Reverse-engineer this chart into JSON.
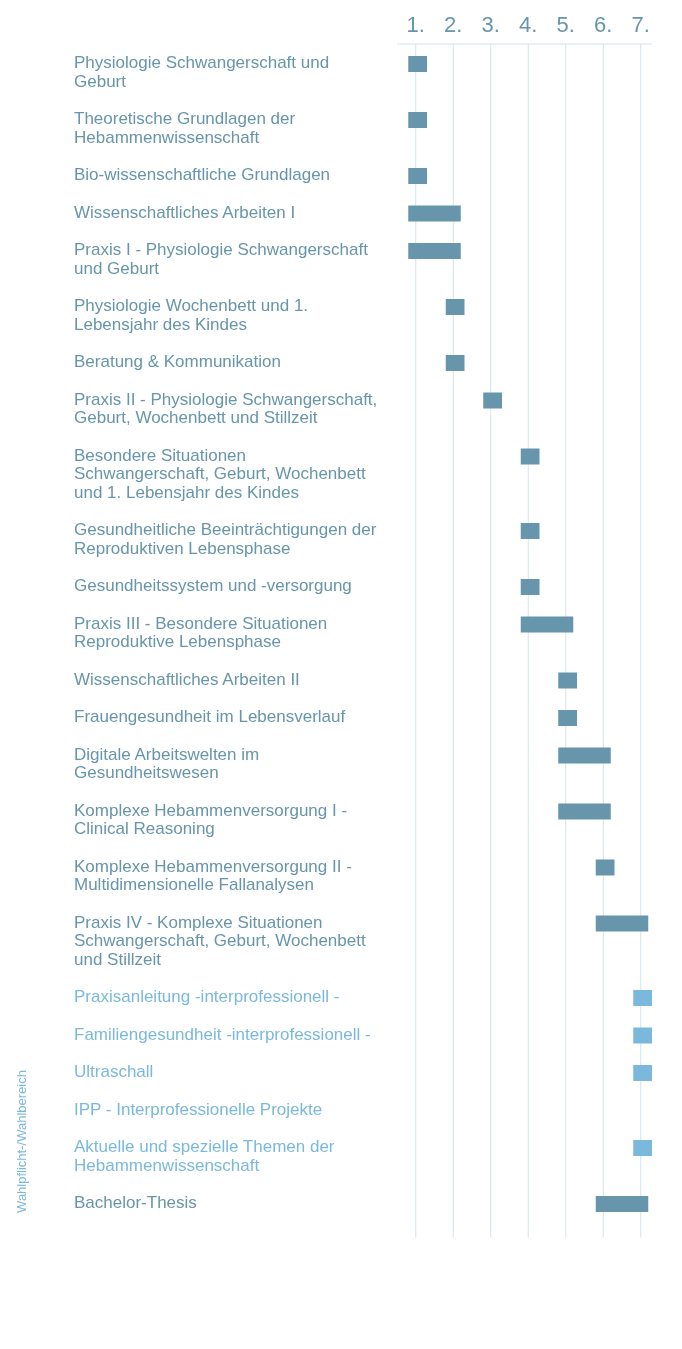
{
  "chart_data": {
    "type": "bar",
    "orientation": "horizontal",
    "categories": [
      "Physiologie Schwangerschaft und Geburt",
      "Theoretische Grundlagen der Hebammenwissenschaft",
      "Bio-wissenschaftliche Grundlagen",
      "Wissenschaftliches  Arbeiten I",
      "Praxis I - Physiologie Schwangerschaft und Geburt",
      "Physiologie Wochenbett und 1. Lebensjahr des Kindes",
      "Beratung & Kommunikation",
      "Praxis II - Physiologie Schwangerschaft, Geburt, Wochenbett und Stillzeit",
      "Besondere Situationen Schwangerschaft, Geburt, Wochenbett und 1. Lebensjahr des Kindes",
      "Gesundheitliche Beeinträchtigungen der Reproduktiven Lebensphase",
      "Gesundheitssystem und -versorgung",
      "Praxis III - Besondere Situationen Reproduktive Lebensphase",
      "Wissenschaftliches Arbeiten II",
      "Frauengesundheit im Lebensverlauf",
      "Digitale Arbeitswelten im Gesundheitswesen",
      "Komplexe Hebammenversorgung I - Clinical Reasoning",
      "Komplexe Hebammenversorgung II - Multidimensionelle Fallanalysen",
      "Praxis IV - Komplexe Situationen Schwangerschaft, Geburt, Wochenbett und Stillzeit",
      "Praxisanleitung -interprofessionell -",
      "Familiengesundheit -interprofessionell -",
      "Ultraschall",
      "IPP - Interprofessionelle Projekte",
      "Aktuelle und spezielle Themen der Hebammenwissenschaft",
      "Bachelor-Thesis"
    ],
    "base": [
      0.8,
      0.8,
      0.8,
      0.8,
      0.8,
      1.8,
      1.8,
      2.8,
      3.8,
      3.8,
      3.8,
      3.8,
      4.8,
      4.8,
      4.8,
      4.8,
      5.8,
      5.8,
      6.8,
      6.8,
      6.8,
      null,
      6.8,
      5.8
    ],
    "values": [
      0.5,
      0.5,
      0.5,
      1.4,
      1.4,
      0.5,
      0.5,
      0.5,
      0.5,
      0.5,
      0.5,
      1.4,
      0.5,
      0.5,
      1.4,
      1.4,
      0.5,
      1.4,
      0.5,
      0.5,
      0.5,
      null,
      0.5,
      1.4
    ],
    "colors": [
      "#6795ab",
      "#6795ab",
      "#6795ab",
      "#6795ab",
      "#6795ab",
      "#6795ab",
      "#6795ab",
      "#6795ab",
      "#6795ab",
      "#6795ab",
      "#6795ab",
      "#6795ab",
      "#6795ab",
      "#6795ab",
      "#6795ab",
      "#6795ab",
      "#6795ab",
      "#6795ab",
      "#7ab9dc",
      "#7ab9dc",
      "#7ab9dc",
      "#7ab9dc",
      "#7ab9dc",
      "#6795ab"
    ],
    "xlim": [
      0.5,
      7.3
    ],
    "xticks": [
      {
        "value": 1,
        "label": "1."
      },
      {
        "value": 2,
        "label": "2."
      },
      {
        "value": 3,
        "label": "3."
      },
      {
        "value": 4,
        "label": "4."
      },
      {
        "value": 5,
        "label": "5."
      },
      {
        "value": 6,
        "label": "6."
      },
      {
        "value": 7,
        "label": "7."
      }
    ],
    "grid": "x",
    "annotations": [
      "Wahlpflicht-/Wahlbereich"
    ]
  }
}
